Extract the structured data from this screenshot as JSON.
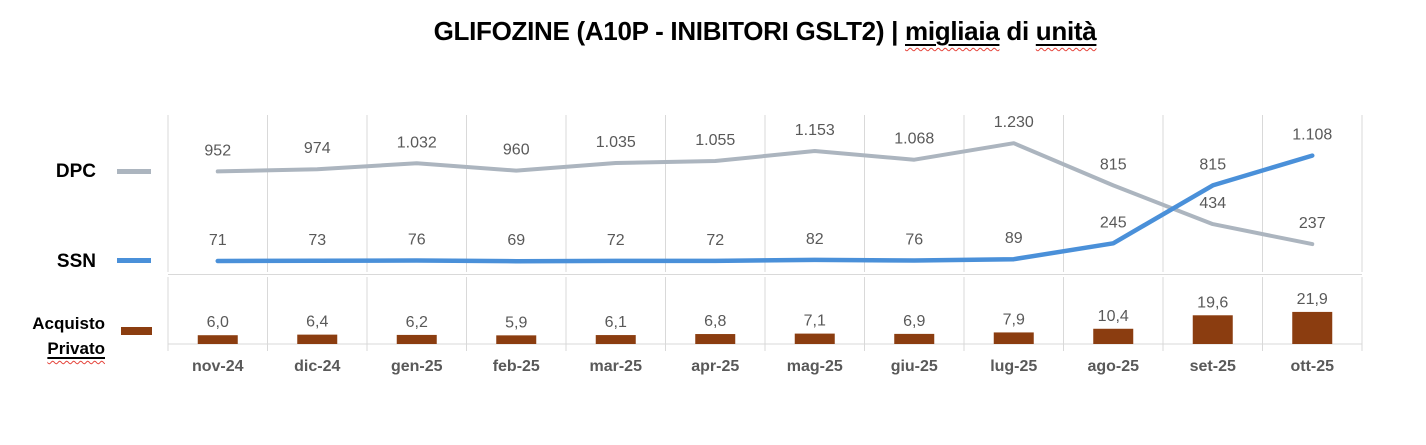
{
  "header": {
    "plain": "GLIFOZINE (A10P - INIBITORI GSLT2) | ",
    "word1": "migliaia",
    "mid": " di ",
    "word2": "unità"
  },
  "legend": {
    "dpc": "DPC",
    "ssn": "SSN",
    "acquisto_line1": "Acquisto",
    "acquisto_line2": "Privato"
  },
  "colors": {
    "gridline": "#D9D9D9",
    "data_label": "#595959",
    "month_label": "#595959",
    "squiggly_red": "#E5433A"
  },
  "chart_data": {
    "type": "combo",
    "title": "GLIFOZINE (A10P - INIBITORI GSLT2) | migliaia di unità",
    "grid": "vertical-only",
    "legend_position": "left",
    "categories": [
      "nov-24",
      "dic-24",
      "gen-25",
      "feb-25",
      "mar-25",
      "apr-25",
      "mag-25",
      "giu-25",
      "lug-25",
      "ago-25",
      "set-25",
      "ott-25"
    ],
    "series": [
      {
        "name": "DPC",
        "type": "line",
        "color": "#ACB5BF",
        "values": [
          952,
          974,
          1032,
          960,
          1035,
          1055,
          1153,
          1068,
          1230,
          815,
          434,
          237
        ],
        "labels": [
          "952",
          "974",
          "1.032",
          "960",
          "1.035",
          "1.055",
          "1.153",
          "1.068",
          "1.230",
          "815",
          "434",
          "237"
        ]
      },
      {
        "name": "SSN",
        "type": "line",
        "color": "#4A90D9",
        "values": [
          71,
          73,
          76,
          69,
          72,
          72,
          82,
          76,
          89,
          245,
          815,
          1108
        ],
        "labels": [
          "71",
          "73",
          "76",
          "69",
          "72",
          "72",
          "82",
          "76",
          "89",
          "245",
          "815",
          "1.108"
        ]
      },
      {
        "name": "Acquisto Privato",
        "type": "bar",
        "color": "#8B3D10",
        "values": [
          6.0,
          6.4,
          6.2,
          5.9,
          6.1,
          6.8,
          7.1,
          6.9,
          7.9,
          10.4,
          19.6,
          21.9
        ],
        "labels": [
          "6,0",
          "6,4",
          "6,2",
          "5,9",
          "6,1",
          "6,8",
          "7,1",
          "6,9",
          "7,9",
          "10,4",
          "19,6",
          "21,9"
        ]
      }
    ],
    "line_axis_range": [
      0,
      1500
    ],
    "bar_axis_range": [
      0,
      48
    ]
  }
}
